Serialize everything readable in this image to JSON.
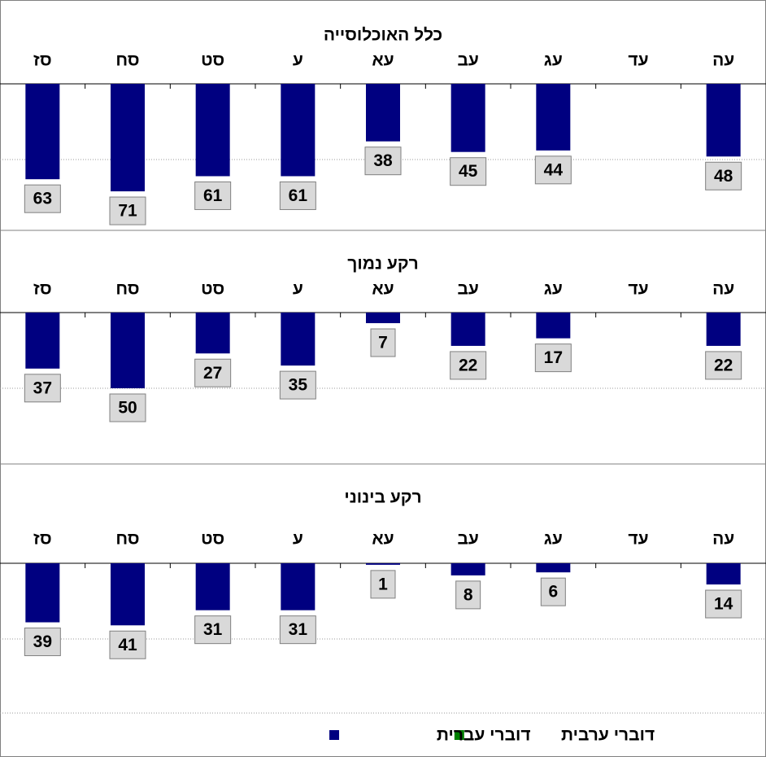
{
  "chart_data": [
    {
      "type": "bar",
      "title": "כלל האוכלוסייה",
      "categories": [
        "סז",
        "סח",
        "סט",
        "ע",
        "עא",
        "עב",
        "עג",
        "עד",
        "עה"
      ],
      "values": [
        63,
        71,
        61,
        61,
        38,
        45,
        44,
        null,
        48
      ],
      "color": "#000080",
      "ylim": [
        0,
        100
      ],
      "yticks": [
        0,
        50
      ],
      "grid": true,
      "y_inverted": true
    },
    {
      "type": "bar",
      "title": "רקע נמוך",
      "categories": [
        "סז",
        "סח",
        "סט",
        "ע",
        "עא",
        "עב",
        "עג",
        "עד",
        "עה"
      ],
      "values": [
        37,
        50,
        27,
        35,
        7,
        22,
        17,
        null,
        22
      ],
      "color": "#000080",
      "ylim": [
        0,
        100
      ],
      "yticks": [
        0,
        50
      ],
      "grid": true,
      "y_inverted": true
    },
    {
      "type": "bar",
      "title": "רקע בינוני",
      "categories": [
        "סז",
        "סח",
        "סט",
        "ע",
        "עא",
        "עב",
        "עג",
        "עד",
        "עה"
      ],
      "values": [
        39,
        41,
        31,
        31,
        1,
        8,
        6,
        null,
        14
      ],
      "color": "#000080",
      "ylim": [
        0,
        100
      ],
      "yticks": [
        0,
        50
      ],
      "grid": true,
      "y_inverted": true
    }
  ],
  "legend": [
    {
      "name": "דוברי ערבית",
      "color": "#008000"
    },
    {
      "name": "דוברי עברית",
      "color": "#000080"
    }
  ]
}
